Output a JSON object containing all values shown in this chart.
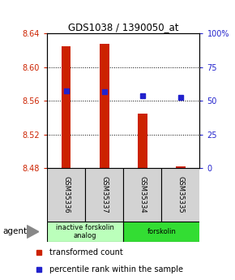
{
  "title": "GDS1038 / 1390050_at",
  "samples": [
    "GSM35336",
    "GSM35337",
    "GSM35334",
    "GSM35335"
  ],
  "bar_bottoms": [
    8.48,
    8.48,
    8.48,
    8.48
  ],
  "bar_tops": [
    8.625,
    8.628,
    8.545,
    8.482
  ],
  "percentile_values": [
    8.572,
    8.571,
    8.566,
    8.564
  ],
  "ylim": [
    8.48,
    8.64
  ],
  "yticks": [
    8.48,
    8.52,
    8.56,
    8.6,
    8.64
  ],
  "ytick_labels": [
    "8.48",
    "8.52",
    "8.56",
    "8.60",
    "8.64"
  ],
  "right_yticks": [
    0,
    25,
    50,
    75,
    100
  ],
  "right_ylim": [
    0,
    100
  ],
  "bar_color": "#cc2200",
  "percentile_color": "#2222cc",
  "agent_groups": [
    {
      "label": "inactive forskolin\nanalog",
      "start": 0,
      "end": 2,
      "color": "#bbffbb"
    },
    {
      "label": "forskolin",
      "start": 2,
      "end": 4,
      "color": "#33dd33"
    }
  ],
  "legend_red_label": "transformed count",
  "legend_blue_label": "percentile rank within the sample",
  "agent_label": "agent",
  "bar_width": 0.25,
  "grid_yticks": [
    8.52,
    8.56,
    8.6
  ]
}
